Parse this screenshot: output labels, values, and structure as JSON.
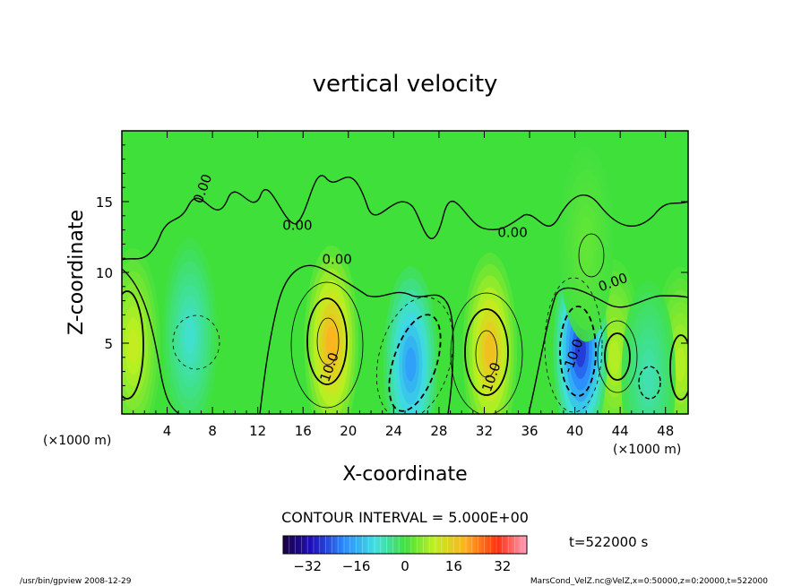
{
  "chart_data": {
    "type": "heatmap",
    "title": "vertical velocity",
    "xlabel": "X-coordinate",
    "ylabel": "Z-coordinate",
    "x_unit_left": "(×1000 m)",
    "x_unit_right": "(×1000 m)",
    "xlim": [
      0,
      50
    ],
    "ylim": [
      0,
      20
    ],
    "x_ticks": [
      "4",
      "8",
      "12",
      "16",
      "20",
      "24",
      "28",
      "32",
      "36",
      "40",
      "44",
      "48"
    ],
    "y_ticks": [
      "5",
      "10",
      "15"
    ],
    "contour_interval_text": "CONTOUR INTERVAL = 5.000E+00",
    "contour_labels": [
      "0.00",
      "0.00",
      "0.00",
      "0.00",
      "0.00",
      "10.0",
      "10.0",
      "-10.0"
    ],
    "colorbar": {
      "range": [
        -40,
        40
      ],
      "ticks": [
        "−32",
        "−16",
        "0",
        "16",
        "32"
      ]
    },
    "time_label": "t=522000 s",
    "field_features": [
      {
        "x": 1,
        "z": 4.8,
        "value": 12
      },
      {
        "x": 18.5,
        "z": 5.0,
        "value": 22
      },
      {
        "x": 32.5,
        "z": 4.5,
        "value": 20
      },
      {
        "x": 43.5,
        "z": 4.0,
        "value": 10
      },
      {
        "x": 49.3,
        "z": 3.5,
        "value": 10
      },
      {
        "x": 6,
        "z": 5.5,
        "value": -10
      },
      {
        "x": 25.5,
        "z": 3.5,
        "value": -20
      },
      {
        "x": 40.5,
        "z": 4.5,
        "value": -30
      },
      {
        "x": 46.5,
        "z": 2.5,
        "value": -8
      },
      {
        "x": 41,
        "z": 12,
        "value": 3
      }
    ]
  },
  "footer": {
    "left": "/usr/bin/gpview   2008-12-29",
    "right": "MarsCond_VelZ.nc@VelZ,x=0:50000,z=0:20000,t=522000"
  }
}
